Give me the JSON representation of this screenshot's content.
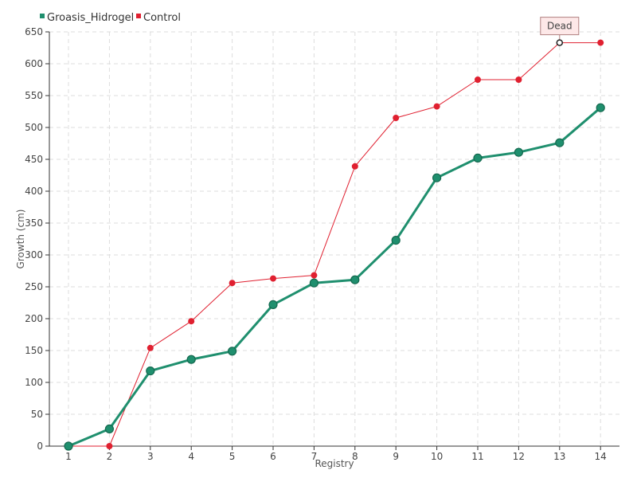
{
  "chart_data": {
    "type": "line",
    "xlabel": "Registry",
    "ylabel": "Growth (cm)",
    "x": [
      1,
      2,
      3,
      4,
      5,
      6,
      7,
      8,
      9,
      10,
      11,
      12,
      13,
      14
    ],
    "ylim": [
      0,
      650
    ],
    "y_ticks": [
      0,
      50,
      100,
      150,
      200,
      250,
      300,
      350,
      400,
      450,
      500,
      550,
      600,
      650
    ],
    "grid": true,
    "legend_position": "top-left",
    "series": [
      {
        "name": "Groasis_Hidrogel",
        "color": "#1f8f6e",
        "values": [
          0,
          27,
          118,
          136,
          149,
          222,
          256,
          261,
          323,
          421,
          452,
          461,
          476,
          531
        ]
      },
      {
        "name": "Control",
        "color": "#e02030",
        "values": [
          0,
          0,
          154,
          196,
          256,
          263,
          268,
          439,
          515,
          533,
          575,
          575,
          633,
          633
        ]
      }
    ],
    "annotations": [
      {
        "text": "Dead",
        "series": "Control",
        "x": 13
      }
    ]
  }
}
